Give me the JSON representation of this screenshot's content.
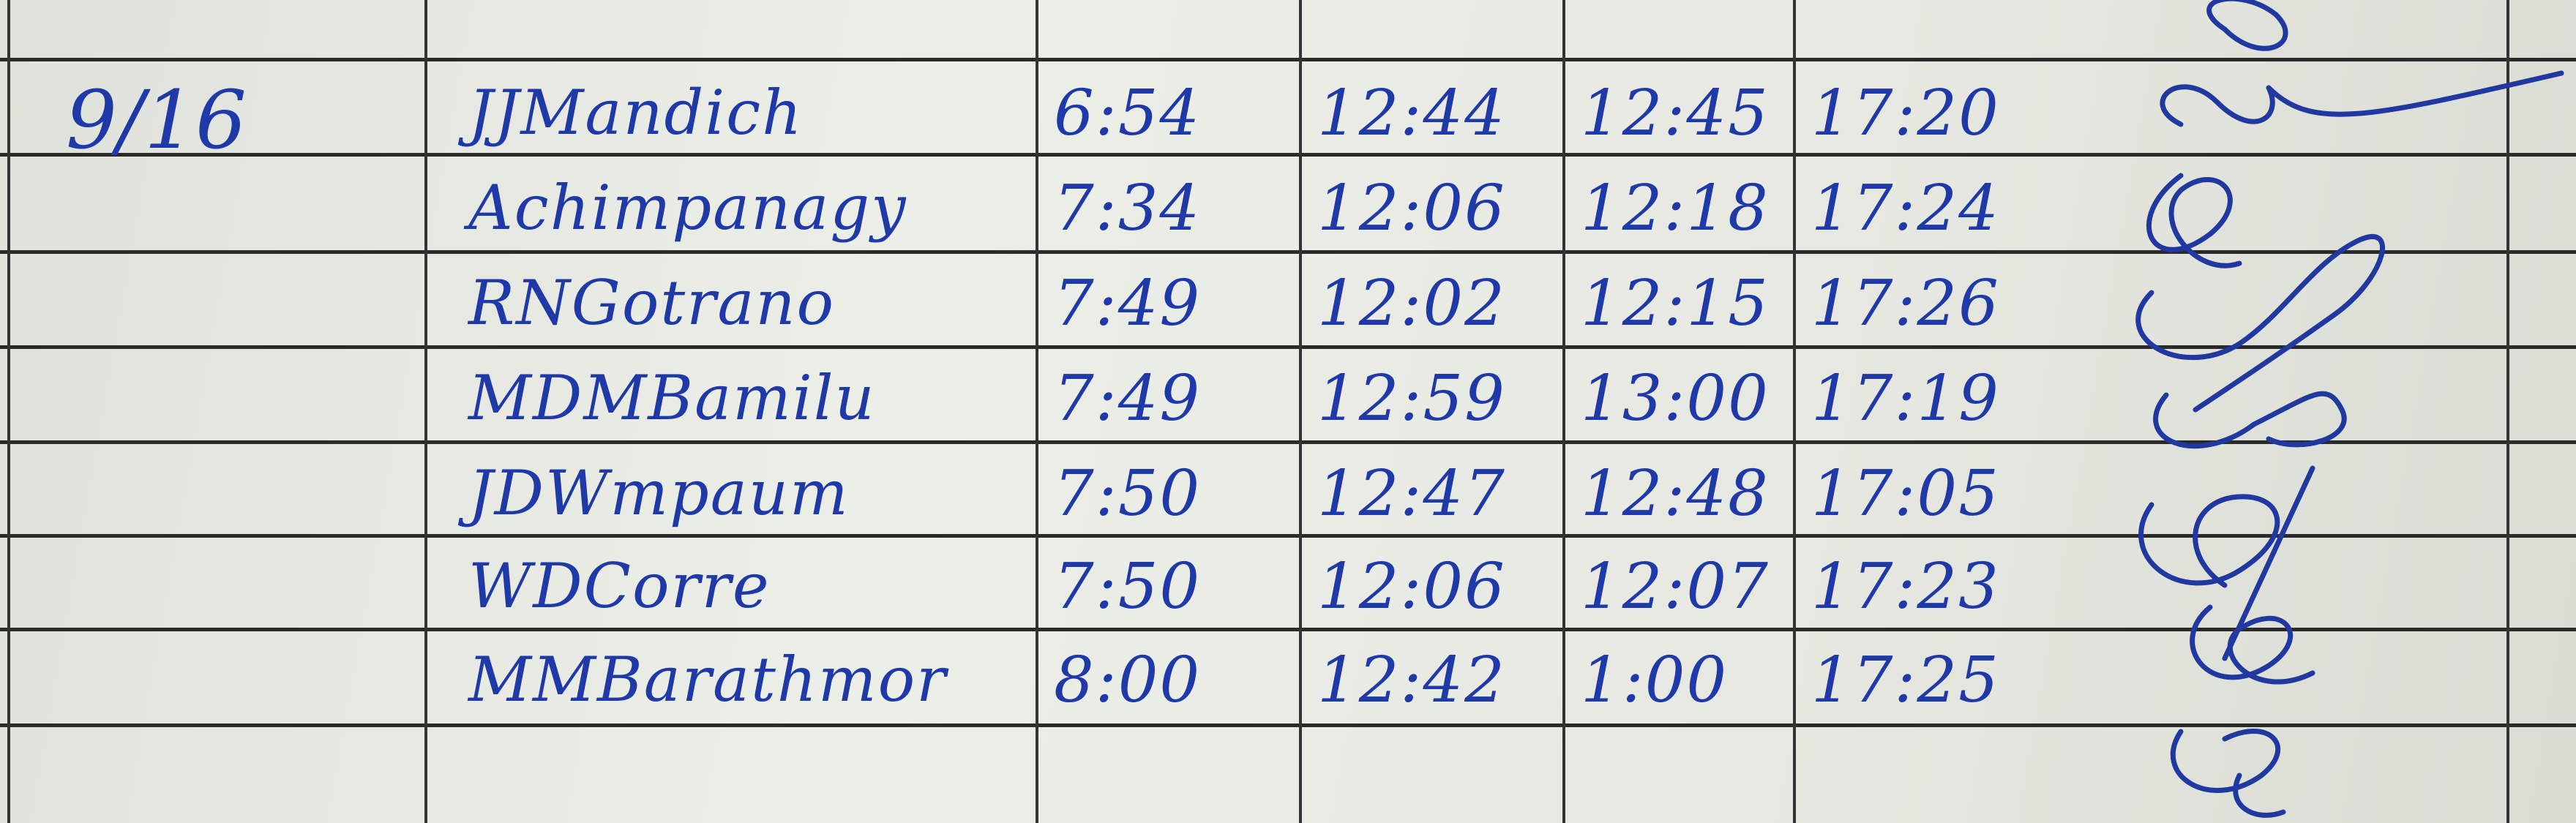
{
  "log": {
    "date": "9/16",
    "rows": [
      {
        "name": "JJMandich",
        "time_in": "6:54",
        "lunch_out": "12:44",
        "lunch_in": "12:45",
        "time_out": "17:20"
      },
      {
        "name": "Achimpanagy",
        "time_in": "7:34",
        "lunch_out": "12:06",
        "lunch_in": "12:18",
        "time_out": "17:24"
      },
      {
        "name": "RNGotrano",
        "time_in": "7:49",
        "lunch_out": "12:02",
        "lunch_in": "12:15",
        "time_out": "17:26"
      },
      {
        "name": "MDMBamilu",
        "time_in": "7:49",
        "lunch_out": "12:59",
        "lunch_in": "13:00",
        "time_out": "17:19"
      },
      {
        "name": "JDWmpaum",
        "time_in": "7:50",
        "lunch_out": "12:47",
        "lunch_in": "12:48",
        "time_out": "17:05"
      },
      {
        "name": "WDCorre",
        "time_in": "7:50",
        "lunch_out": "12:06",
        "lunch_in": "12:07",
        "time_out": "17:23"
      },
      {
        "name": "MMBarathmor",
        "time_in": "8:00",
        "lunch_out": "12:42",
        "lunch_in": "1:00",
        "time_out": "17:25"
      }
    ]
  },
  "colors": {
    "ink": "#1f3aa8",
    "paper": "#e6e8e1",
    "rule": "#2a2a2a"
  }
}
